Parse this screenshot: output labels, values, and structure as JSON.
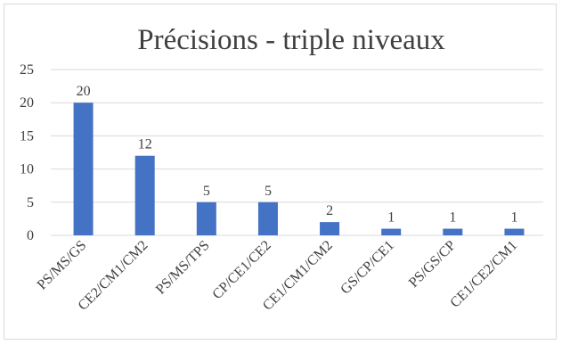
{
  "chart_data": {
    "type": "bar",
    "title": "Précisions - triple niveaux",
    "categories": [
      "PS/MS/GS",
      "CE2/CM1/CM2",
      "PS/MS/TPS",
      "CP/CE1/CE2",
      "CE1/CM1/CM2",
      "GS/CP/CE1",
      "PS/GS/CP",
      "CE1/CE2/CM1"
    ],
    "values": [
      20,
      12,
      5,
      5,
      2,
      1,
      1,
      1
    ],
    "data_labels": [
      "20",
      "12",
      "5",
      "5",
      "2",
      "1",
      "1",
      "1"
    ],
    "ylim": [
      0,
      25
    ],
    "yticks": [
      "0",
      "5",
      "10",
      "15",
      "20",
      "25"
    ],
    "grid": true,
    "legend": "none",
    "bar_color": "#4472c4",
    "grid_color": "#d9d9d9"
  }
}
